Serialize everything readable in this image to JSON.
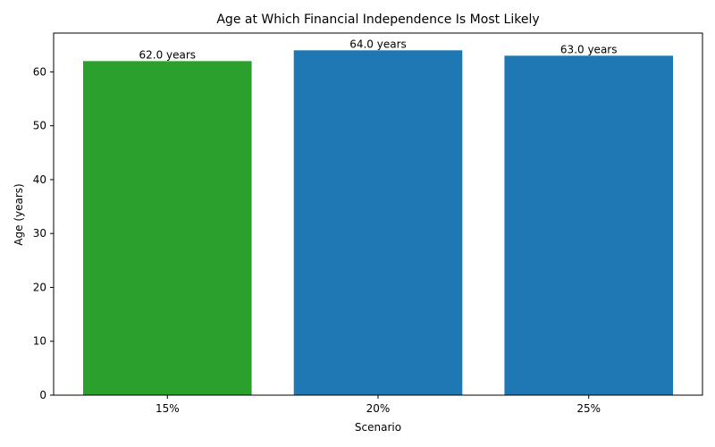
{
  "chart_data": {
    "type": "bar",
    "title": "Age at Which Financial Independence Is Most Likely",
    "x_label": "Scenario",
    "y_label": "Age (years)",
    "categories": [
      "15%",
      "20%",
      "25%"
    ],
    "values": [
      62,
      64,
      63
    ],
    "value_labels": [
      "62.0 years",
      "64.0 years",
      "63.0 years"
    ],
    "colors": [
      "#2ca02c",
      "#1f77b4",
      "#1f77b4"
    ],
    "ylim": [
      0,
      67.2
    ],
    "yticks": [
      0,
      10,
      20,
      30,
      40,
      50,
      60
    ],
    "grid": false
  }
}
